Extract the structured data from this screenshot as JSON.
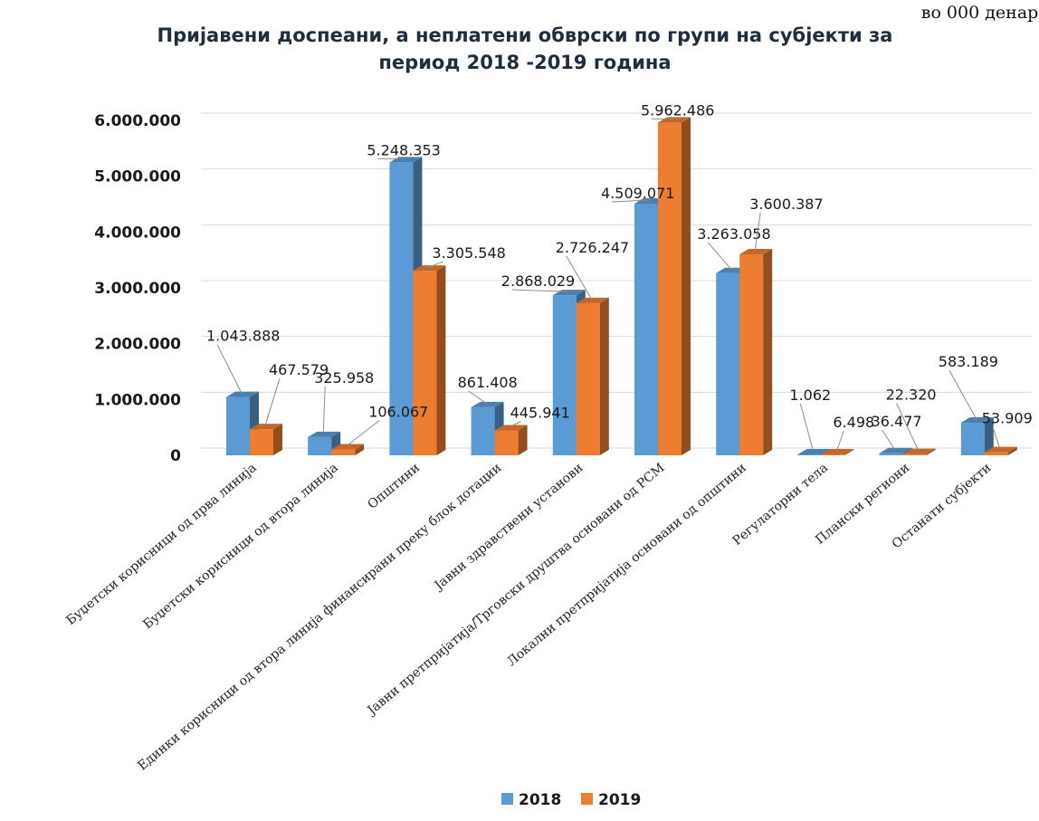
{
  "chart_data": {
    "type": "bar",
    "unit_note": "во 000 денари",
    "title_lines": [
      "Пријавени доспеани, а неплатени обврски по групи на субјекти за",
      "период 2018 -2019 година"
    ],
    "categories": [
      "Буџетски корисници од прва линија",
      "Буџетски корисници од втора линија",
      "Општини",
      "Единки корисници од втора линија финансирани преку блок дотации",
      "Јавни здравствени установи",
      "Јавни претпријатија/Трговски друштва основани од РСМ",
      "Локални претпријатија основани од општини",
      "Регулаторни тела",
      "Плански региони",
      "Останати субјекти"
    ],
    "series": [
      {
        "name": "2018",
        "color": "#5b9bd5",
        "values": [
          1043888,
          325958,
          5248353,
          861408,
          2868029,
          4509071,
          3263058,
          1062,
          36477,
          583189
        ],
        "labels": [
          "1.043.888",
          "325.958",
          "5.248.353",
          "861.408",
          "2.868.029",
          "4.509.071",
          "3.263.058",
          "1.062",
          "36.477",
          "583.189"
        ]
      },
      {
        "name": "2019",
        "color": "#ed7d31",
        "values": [
          467579,
          106067,
          3305548,
          445941,
          2726247,
          5962486,
          3600387,
          6498,
          22320,
          53909
        ],
        "labels": [
          "467.579",
          "106.067",
          "3.305.548",
          "445.941",
          "2.726.247",
          "5.962.486",
          "3.600.387",
          "6.498",
          "22.320",
          "53.909"
        ]
      }
    ],
    "ylim": [
      0,
      6000000
    ],
    "yticks": [
      0,
      1000000,
      2000000,
      3000000,
      4000000,
      5000000,
      6000000
    ],
    "ytick_labels": [
      "0",
      "1.000.000",
      "2.000.000",
      "3.000.000",
      "4.000.000",
      "5.000.000",
      "6.000.000"
    ],
    "grid": true,
    "legend_position": "bottom"
  }
}
